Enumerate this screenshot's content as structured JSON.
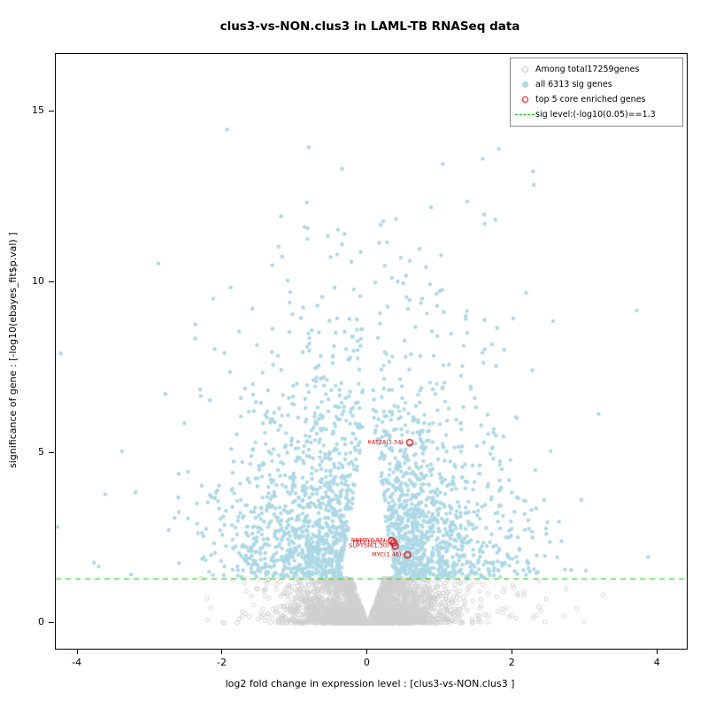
{
  "chart_data": {
    "type": "scatter",
    "subtype": "volcano-plot",
    "title": "clus3-vs-NON.clus3 in LAML-TB RNASeq data",
    "xlabel": "log2 fold change in expression level : [clus3-vs-NON.clus3 ]",
    "ylabel": "significance of gene : [-log10(ebayes_fit$p.val) ]",
    "xlim": [
      -4.3,
      4.4
    ],
    "ylim": [
      -0.75,
      16.7
    ],
    "x_ticks": [
      -4,
      -2,
      0,
      2,
      4
    ],
    "y_ticks": [
      0,
      5,
      10,
      15
    ],
    "grid": false,
    "sig_line": {
      "y": 1.3,
      "color": "#00CC00",
      "style": "dashed",
      "label": "sig level:(-log10(0.05)==1.3"
    },
    "legend": {
      "position": "top-right",
      "items": [
        {
          "label": "Among total17259genes",
          "marker": "open-circle",
          "color": "#C8C8C8"
        },
        {
          "label": "all 6313 sig genes",
          "marker": "filled-circle",
          "color": "#ADD8E6"
        },
        {
          "label": "top 5 core enriched genes",
          "marker": "open-circle",
          "color": "#FF0000"
        },
        {
          "label": "sig level:(-log10(0.05)==1.3",
          "marker": "dashed-line",
          "color": "#00CC00"
        }
      ]
    },
    "highlighted_genes": [
      {
        "label": "KAT2A(1.54)",
        "x": 0.58,
        "y": 5.3
      },
      {
        "label": "RNMT(0.87)",
        "x": 0.33,
        "y": 2.42
      },
      {
        "label": "PELP1(0.97)",
        "x": 0.36,
        "y": 2.36
      },
      {
        "label": "SUPT5H(1.30)",
        "x": 0.38,
        "y": 2.26
      },
      {
        "label": "MYC(1.46)",
        "x": 0.55,
        "y": 2.0
      }
    ],
    "point_clouds": {
      "note": "procedural approximation of the dense scatter; seeded for determinism",
      "seed": 42,
      "nonsig": {
        "count": 2600,
        "color": "#CFCFCF",
        "style": "open",
        "x_sigma": 0.55,
        "wide_tail_frac": 0.12,
        "y_max": 1.32
      },
      "nonsig_core": {
        "count": 1400,
        "color": "#CFCFCF",
        "style": "open",
        "x_sigma": 0.32,
        "y_max": 0.5
      },
      "sig": {
        "count": 2300,
        "color": "#ADD8E6",
        "style": "filled",
        "y_min": 1.35,
        "y_mean_exp": 2.3,
        "y_max": 14.6,
        "x_sigma": 0.75
      }
    },
    "counts": {
      "total_genes": 17259,
      "sig_genes": 6313,
      "core_enriched": 5
    }
  }
}
